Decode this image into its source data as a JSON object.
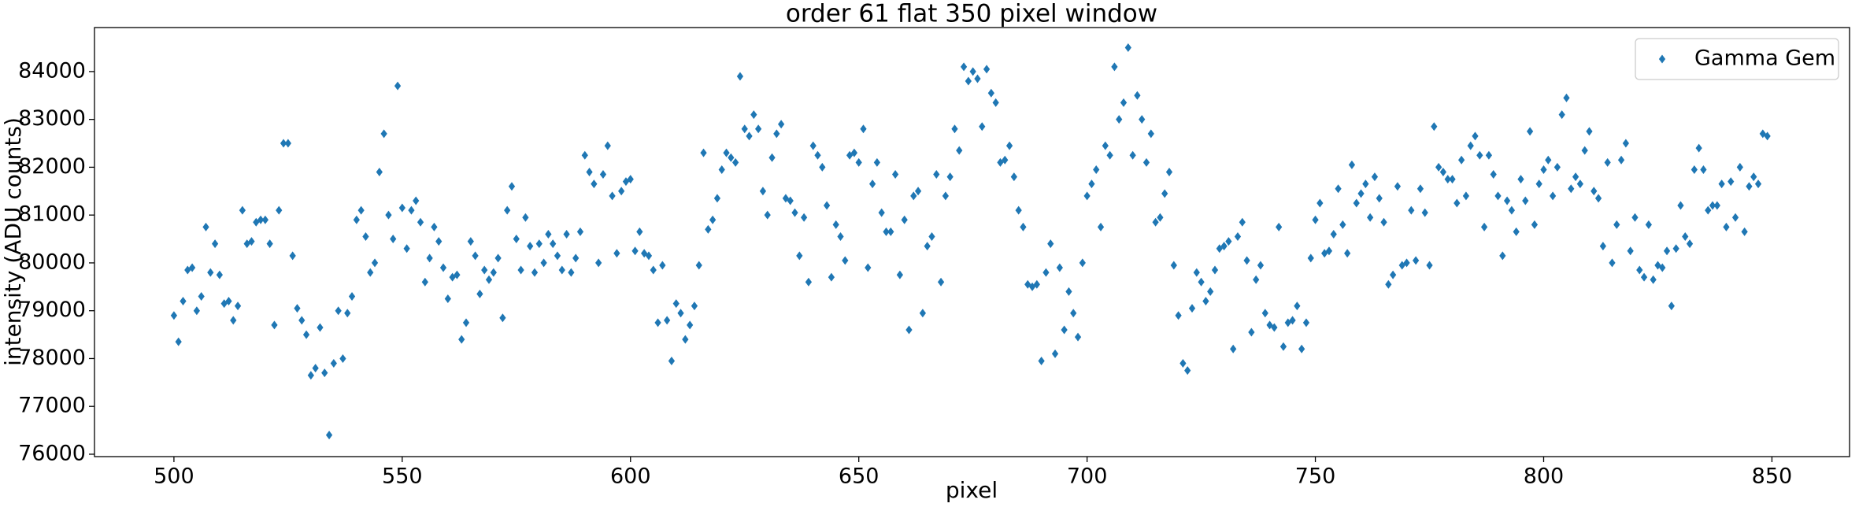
{
  "chart_data": {
    "type": "scatter",
    "title": "order 61 flat 350 pixel window",
    "x_label": "pixel",
    "y_label": "intensity (ADU counts)",
    "xlim": [
      482.6,
      867
    ],
    "ylim": [
      75950,
      84920
    ],
    "xticks": [
      500,
      550,
      600,
      650,
      700,
      750,
      800,
      850
    ],
    "yticks": [
      76000,
      77000,
      78000,
      79000,
      80000,
      81000,
      82000,
      83000,
      84000
    ],
    "legend": "upper right",
    "marker": "diamond",
    "series": [
      {
        "name": "Gamma Gem",
        "color": "#1f77b4",
        "x": [
          500,
          501,
          502,
          503,
          504,
          505,
          506,
          507,
          508,
          509,
          510,
          511,
          512,
          513,
          514,
          515,
          516,
          517,
          518,
          519,
          520,
          521,
          522,
          523,
          524,
          525,
          526,
          527,
          528,
          529,
          530,
          531,
          532,
          533,
          534,
          535,
          536,
          537,
          538,
          539,
          540,
          541,
          542,
          543,
          544,
          545,
          546,
          547,
          548,
          549,
          550,
          551,
          552,
          553,
          554,
          555,
          556,
          557,
          558,
          559,
          560,
          561,
          562,
          563,
          564,
          565,
          566,
          567,
          568,
          569,
          570,
          571,
          572,
          573,
          574,
          575,
          576,
          577,
          578,
          579,
          580,
          581,
          582,
          583,
          584,
          585,
          586,
          587,
          588,
          589,
          590,
          591,
          592,
          593,
          594,
          595,
          596,
          597,
          598,
          599,
          600,
          601,
          602,
          603,
          604,
          605,
          606,
          607,
          608,
          609,
          610,
          611,
          612,
          613,
          614,
          615,
          616,
          617,
          618,
          619,
          620,
          621,
          622,
          623,
          624,
          625,
          626,
          627,
          628,
          629,
          630,
          631,
          632,
          633,
          634,
          635,
          636,
          637,
          638,
          639,
          640,
          641,
          642,
          643,
          644,
          645,
          646,
          647,
          648,
          649,
          650,
          651,
          652,
          653,
          654,
          655,
          656,
          657,
          658,
          659,
          660,
          661,
          662,
          663,
          664,
          665,
          666,
          667,
          668,
          669,
          670,
          671,
          672,
          673,
          674,
          675,
          676,
          677,
          678,
          679,
          680,
          681,
          682,
          683,
          684,
          685,
          686,
          687,
          688,
          689,
          690,
          691,
          692,
          693,
          694,
          695,
          696,
          697,
          698,
          699,
          700,
          701,
          702,
          703,
          704,
          705,
          706,
          707,
          708,
          709,
          710,
          711,
          712,
          713,
          714,
          715,
          716,
          717,
          718,
          719,
          720,
          721,
          722,
          723,
          724,
          725,
          726,
          727,
          728,
          729,
          730,
          731,
          732,
          733,
          734,
          735,
          736,
          737,
          738,
          739,
          740,
          741,
          742,
          743,
          744,
          745,
          746,
          747,
          748,
          749,
          750,
          751,
          752,
          753,
          754,
          755,
          756,
          757,
          758,
          759,
          760,
          761,
          762,
          763,
          764,
          765,
          766,
          767,
          768,
          769,
          770,
          771,
          772,
          773,
          774,
          775,
          776,
          777,
          778,
          779,
          780,
          781,
          782,
          783,
          784,
          785,
          786,
          787,
          788,
          789,
          790,
          791,
          792,
          793,
          794,
          795,
          796,
          797,
          798,
          799,
          800,
          801,
          802,
          803,
          804,
          805,
          806,
          807,
          808,
          809,
          810,
          811,
          812,
          813,
          814,
          815,
          816,
          817,
          818,
          819,
          820,
          821,
          822,
          823,
          824,
          825,
          826,
          827,
          828,
          829,
          830,
          831,
          832,
          833,
          834,
          835,
          836,
          837,
          838,
          839,
          840,
          841,
          842,
          843,
          844,
          845,
          846,
          847,
          848,
          849
        ],
        "values": [
          78900,
          78350,
          79200,
          79850,
          79900,
          79000,
          79300,
          80750,
          79800,
          80400,
          79750,
          79150,
          79200,
          78800,
          79100,
          81100,
          80400,
          80450,
          80850,
          80900,
          80900,
          80400,
          78700,
          81100,
          82500,
          82500,
          80150,
          79050,
          78800,
          78500,
          77650,
          77800,
          78650,
          77700,
          76400,
          77900,
          79000,
          78000,
          78950,
          79300,
          80900,
          81100,
          80550,
          79800,
          80000,
          81900,
          82700,
          81000,
          80500,
          83700,
          81150,
          80300,
          81100,
          81300,
          80850,
          79600,
          80100,
          80750,
          80450,
          79900,
          79250,
          79700,
          79750,
          78400,
          78750,
          80450,
          80150,
          79350,
          79850,
          79650,
          79800,
          80100,
          78850,
          81100,
          81600,
          80500,
          79850,
          80950,
          80350,
          79800,
          80400,
          80000,
          80600,
          80400,
          80150,
          79850,
          80600,
          79800,
          80100,
          80650,
          82250,
          81900,
          81650,
          80000,
          81850,
          82450,
          81400,
          80200,
          81500,
          81700,
          81750,
          80250,
          80650,
          80200,
          80150,
          79850,
          78750,
          79950,
          78800,
          77950,
          79150,
          78950,
          78400,
          78700,
          79100,
          79950,
          82300,
          80700,
          80900,
          81350,
          81950,
          82300,
          82200,
          82100,
          83900,
          82800,
          82650,
          83100,
          82800,
          81500,
          81000,
          82200,
          82700,
          82900,
          81350,
          81300,
          81050,
          80150,
          80950,
          79600,
          82450,
          82250,
          82000,
          81200,
          79700,
          80800,
          80550,
          80050,
          82250,
          82300,
          82100,
          82800,
          79900,
          81650,
          82100,
          81050,
          80650,
          80650,
          81850,
          79750,
          80900,
          78600,
          81400,
          81500,
          78950,
          80350,
          80550,
          81850,
          79600,
          81400,
          81800,
          82800,
          82350,
          84100,
          83800,
          84000,
          83850,
          82850,
          84050,
          83550,
          83350,
          82100,
          82150,
          82450,
          81800,
          81100,
          80750,
          79550,
          79500,
          79550,
          77950,
          79800,
          80400,
          78100,
          79900,
          78600,
          79400,
          78950,
          78450,
          80000,
          81400,
          81650,
          81950,
          80750,
          82450,
          82250,
          84100,
          83000,
          83350,
          84500,
          82250,
          83500,
          83000,
          82100,
          82700,
          80850,
          80950,
          81450,
          81900,
          79950,
          78900,
          77900,
          77750,
          79050,
          79800,
          79600,
          79200,
          79400,
          79850,
          80300,
          80350,
          80450,
          78200,
          80550,
          80850,
          80050,
          78550,
          79650,
          79950,
          78950,
          78700,
          78650,
          80750,
          78250,
          78750,
          78800,
          79100,
          78200,
          78750,
          80100,
          80900,
          81250,
          80200,
          80250,
          80600,
          81550,
          80800,
          80200,
          82050,
          81250,
          81450,
          81650,
          80950,
          81800,
          81350,
          80850,
          79550,
          79750,
          81600,
          79950,
          80000,
          81100,
          80050,
          81550,
          81050,
          79950,
          82850,
          82000,
          81900,
          81750,
          81750,
          81250,
          82150,
          81400,
          82450,
          82650,
          82250,
          80750,
          82250,
          81850,
          81400,
          80150,
          81300,
          81100,
          80650,
          81750,
          81300,
          82750,
          80800,
          81650,
          81950,
          82150,
          81400,
          82000,
          83100,
          83450,
          81550,
          81800,
          81650,
          82350,
          82750,
          81500,
          81350,
          80350,
          82100,
          80000,
          80800,
          82150,
          82500,
          80250,
          80950,
          79850,
          79700,
          80800,
          79650,
          79950,
          79900,
          80250,
          79100,
          80300,
          81200,
          80550,
          80400,
          81950,
          82400,
          81950,
          81100,
          81200,
          81200,
          81650,
          80750,
          81700,
          80950,
          82000,
          80650,
          81600,
          81800,
          81650,
          82700,
          82650
        ]
      }
    ]
  }
}
